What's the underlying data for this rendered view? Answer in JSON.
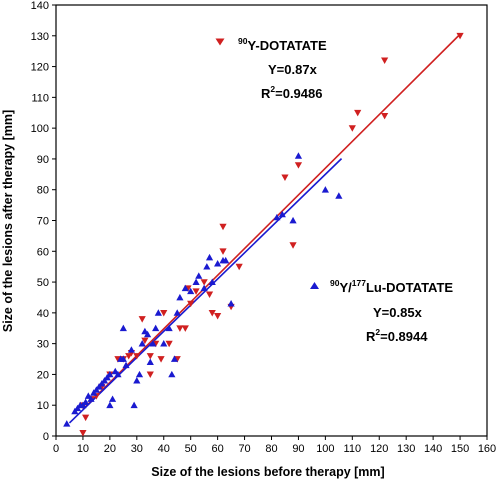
{
  "chart_data": {
    "type": "scatter",
    "xlabel": "Size of the lesions before therapy [mm]",
    "ylabel": "Size of the lesions after therapy [mm]",
    "xlim": [
      0,
      160
    ],
    "ylim": [
      0,
      140
    ],
    "xticks": [
      0,
      10,
      20,
      30,
      40,
      50,
      60,
      70,
      80,
      90,
      100,
      110,
      120,
      130,
      140,
      150,
      160
    ],
    "yticks": [
      0,
      10,
      20,
      30,
      40,
      50,
      60,
      70,
      80,
      90,
      100,
      110,
      120,
      130,
      140
    ],
    "grid": false,
    "series": [
      {
        "marker": "triangle-down",
        "color": "#d02020",
        "points": [
          [
            10,
            1
          ],
          [
            10,
            10
          ],
          [
            11,
            6
          ],
          [
            13,
            12
          ],
          [
            15,
            13
          ],
          [
            17,
            16
          ],
          [
            20,
            20
          ],
          [
            23,
            25
          ],
          [
            25,
            25
          ],
          [
            27,
            26
          ],
          [
            28,
            27
          ],
          [
            30,
            26
          ],
          [
            32,
            38
          ],
          [
            33,
            31
          ],
          [
            35,
            20
          ],
          [
            35,
            26
          ],
          [
            37,
            30
          ],
          [
            39,
            25
          ],
          [
            40,
            40
          ],
          [
            42,
            30
          ],
          [
            45,
            25
          ],
          [
            46,
            35
          ],
          [
            48,
            35
          ],
          [
            49,
            48
          ],
          [
            50,
            43
          ],
          [
            52,
            47
          ],
          [
            55,
            50
          ],
          [
            57,
            46
          ],
          [
            58,
            40
          ],
          [
            60,
            39
          ],
          [
            62,
            60
          ],
          [
            62,
            68
          ],
          [
            65,
            42
          ],
          [
            68,
            55
          ],
          [
            85,
            84
          ],
          [
            88,
            62
          ],
          [
            90,
            88
          ],
          [
            110,
            100
          ],
          [
            112,
            105
          ],
          [
            122,
            104
          ],
          [
            122,
            122
          ],
          [
            150,
            130
          ]
        ],
        "fit_slope": 0.87,
        "fit_x": [
          10,
          150
        ]
      },
      {
        "marker": "triangle-up",
        "color": "#1a1ad0",
        "points": [
          [
            4,
            4
          ],
          [
            7,
            8
          ],
          [
            8,
            9
          ],
          [
            9,
            10
          ],
          [
            10,
            10
          ],
          [
            11,
            11
          ],
          [
            12,
            13
          ],
          [
            13,
            12
          ],
          [
            14,
            14
          ],
          [
            15,
            15
          ],
          [
            16,
            16
          ],
          [
            17,
            17
          ],
          [
            18,
            18
          ],
          [
            19,
            19
          ],
          [
            20,
            20
          ],
          [
            20,
            10
          ],
          [
            21,
            12
          ],
          [
            22,
            21
          ],
          [
            23,
            20
          ],
          [
            24,
            25
          ],
          [
            25,
            25
          ],
          [
            25,
            35
          ],
          [
            26,
            23
          ],
          [
            28,
            28
          ],
          [
            29,
            10
          ],
          [
            30,
            18
          ],
          [
            31,
            20
          ],
          [
            32,
            30
          ],
          [
            33,
            34
          ],
          [
            34,
            33
          ],
          [
            35,
            24
          ],
          [
            36,
            30
          ],
          [
            37,
            35
          ],
          [
            38,
            40
          ],
          [
            40,
            30
          ],
          [
            42,
            35
          ],
          [
            43,
            20
          ],
          [
            44,
            25
          ],
          [
            45,
            40
          ],
          [
            46,
            45
          ],
          [
            48,
            48
          ],
          [
            50,
            47
          ],
          [
            52,
            50
          ],
          [
            53,
            52
          ],
          [
            55,
            48
          ],
          [
            56,
            55
          ],
          [
            57,
            58
          ],
          [
            58,
            50
          ],
          [
            60,
            56
          ],
          [
            62,
            57
          ],
          [
            63,
            57
          ],
          [
            65,
            43
          ],
          [
            82,
            71
          ],
          [
            84,
            72
          ],
          [
            88,
            70
          ],
          [
            90,
            91
          ],
          [
            100,
            80
          ],
          [
            105,
            78
          ]
        ],
        "fit_slope": 0.85,
        "fit_x": [
          5,
          106
        ]
      }
    ],
    "annotations": [
      {
        "sup": "90",
        "text": "Y-DOTATATE",
        "eq": "Y=0.87x",
        "r2_base": "R",
        "r2_sup": "2",
        "r2_val": "=0.9486"
      },
      {
        "sup": "90",
        "text": "Y/",
        "sup2": "177",
        "text2": "Lu-DOTATATE",
        "eq": "Y=0.85x",
        "r2_base": "R",
        "r2_sup": "2",
        "r2_val": "=0.8944"
      }
    ]
  }
}
